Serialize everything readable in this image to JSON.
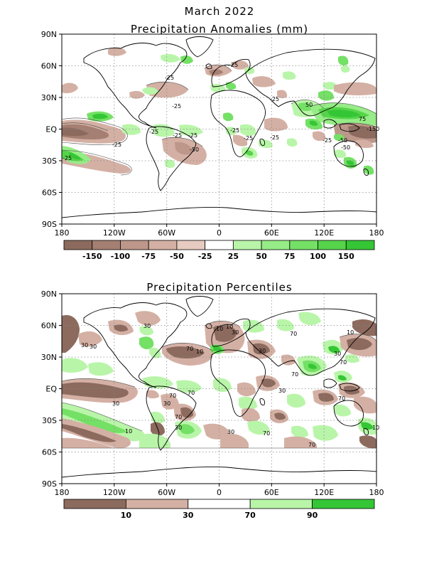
{
  "page": {
    "main_title": "March 2022"
  },
  "maps": [
    {
      "id": "anomalies",
      "title": "Precipitation Anomalies (mm)",
      "lat_labels": [
        "90N",
        "60N",
        "30N",
        "EQ",
        "30S",
        "60S",
        "90S"
      ],
      "lon_labels": [
        "180",
        "120W",
        "60W",
        "0",
        "60E",
        "120E",
        "180"
      ],
      "colorbar": {
        "colors": [
          "#8c6a5e",
          "#a57f72",
          "#bd978a",
          "#d4b0a4",
          "#e7cbc1",
          "#ffffff",
          "#b9f5a9",
          "#96ec86",
          "#74e065",
          "#56d44a",
          "#35c635"
        ],
        "labels": [
          "-150",
          "-100",
          "-75",
          "-50",
          "-25",
          "25",
          "50",
          "75",
          "100",
          "150"
        ]
      },
      "contour_labels": [
        "-25",
        "-25",
        "-25",
        "-25",
        "-25",
        "-25",
        "-25",
        "-50",
        "-25",
        "-25",
        "-25",
        "-50",
        "-25",
        "50",
        "75",
        "-50",
        "-150",
        "-25",
        "-25"
      ]
    },
    {
      "id": "percentiles",
      "title": "Precipitation Percentiles",
      "lat_labels": [
        "90N",
        "60N",
        "30N",
        "EQ",
        "30S",
        "60S",
        "90S"
      ],
      "lon_labels": [
        "180",
        "120W",
        "60W",
        "0",
        "60E",
        "120E",
        "180"
      ],
      "colorbar": {
        "colors": [
          "#8c6a5e",
          "#d4b0a4",
          "#ffffff",
          "#b9f5a9",
          "#35c635"
        ],
        "labels": [
          "10",
          "30",
          "70",
          "90"
        ]
      },
      "contour_labels": [
        "30",
        "30",
        "10",
        "70",
        "10",
        "30",
        "10",
        "70",
        "30",
        "30",
        "70",
        "30",
        "10",
        "30",
        "30",
        "70",
        "70",
        "70",
        "70",
        "10",
        "30",
        "70",
        "70",
        "10",
        "30",
        "70",
        "30"
      ]
    }
  ],
  "colors": {
    "dry_strong": "#8c6a5e",
    "dry_mid": "#bd978a",
    "dry_light": "#d4b0a4",
    "wet_light": "#b9f5a9",
    "wet_mid": "#74e065",
    "wet_strong": "#35c635"
  }
}
